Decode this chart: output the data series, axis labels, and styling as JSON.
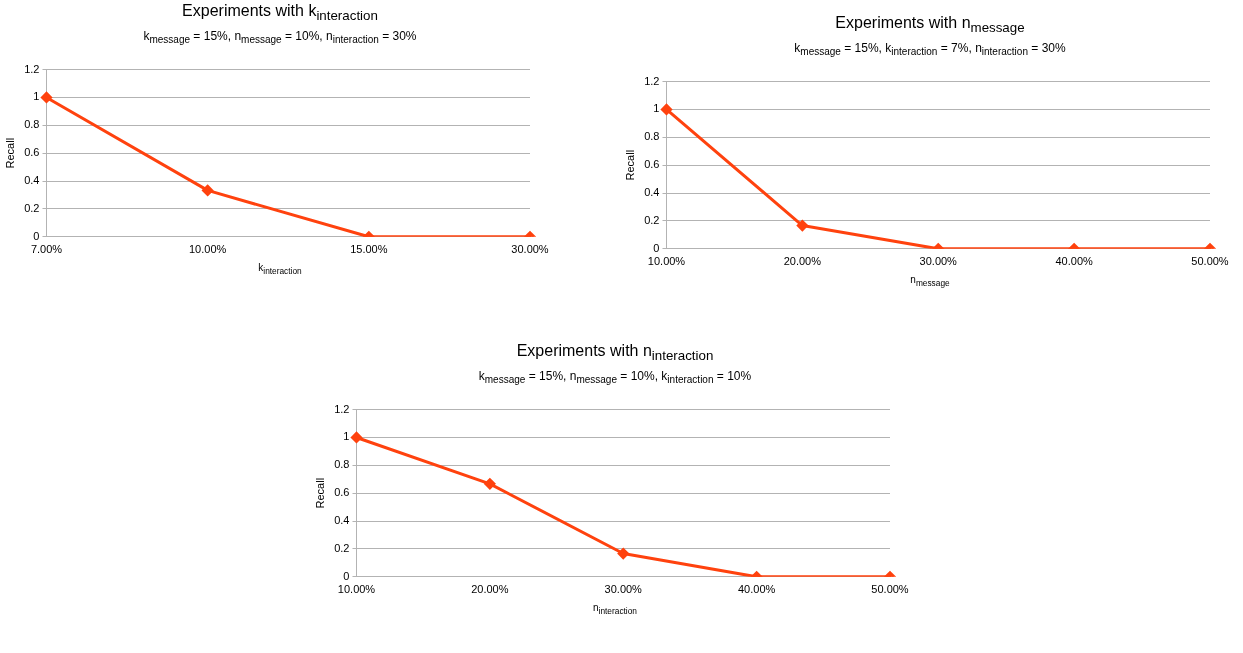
{
  "chart_data": [
    {
      "type": "line",
      "title": "Experiments with k$_{interaction}$",
      "subtitle": "k$_{message}$ = 15%, n$_{message}$ = 10%, n$_{interaction}$ = 30%",
      "xlabel": "k$_{interaction}$",
      "ylabel": "Recall",
      "categories": [
        "7.00%",
        "10.00%",
        "15.00%",
        "30.00%"
      ],
      "series": [
        {
          "color": "#ff420e",
          "values": [
            1,
            0.333,
            0,
            0
          ]
        }
      ],
      "ylim": [
        0,
        1.2
      ],
      "yticks": [
        0,
        0.2,
        0.4,
        0.6,
        0.8,
        1,
        1.2
      ],
      "grid": "y",
      "legend": false,
      "marker": "diamond",
      "line_style": "solid"
    },
    {
      "type": "line",
      "title": "Experiments with n$_{message}$",
      "subtitle": "k$_{message}$ = 15%, k$_{interaction}$ = 7%, n$_{interaction}$ = 30%",
      "xlabel": "n$_{message}$",
      "ylabel": "Recall",
      "categories": [
        "10.00%",
        "20.00%",
        "30.00%",
        "40.00%",
        "50.00%"
      ],
      "series": [
        {
          "color": "#ff420e",
          "values": [
            1,
            0.167,
            0,
            0,
            0
          ]
        }
      ],
      "ylim": [
        0,
        1.2
      ],
      "yticks": [
        0,
        0.2,
        0.4,
        0.6,
        0.8,
        1,
        1.2
      ],
      "grid": "y",
      "legend": false,
      "marker": "diamond",
      "line_style": "solid"
    },
    {
      "type": "line",
      "title": "Experiments with n$_{interaction}$",
      "subtitle": "k$_{message}$ = 15%, n$_{message}$ = 10%, k$_{interaction}$ = 10%",
      "xlabel": "n$_{interaction}$",
      "ylabel": "Recall",
      "categories": [
        "10.00%",
        "20.00%",
        "30.00%",
        "40.00%",
        "50.00%"
      ],
      "series": [
        {
          "color": "#ff420e",
          "values": [
            1,
            0.667,
            0.167,
            0,
            0
          ]
        }
      ],
      "ylim": [
        0,
        1.2
      ],
      "yticks": [
        0,
        0.2,
        0.4,
        0.6,
        0.8,
        1,
        1.2
      ],
      "grid": "y",
      "legend": false,
      "marker": "diamond",
      "line_style": "solid"
    }
  ]
}
